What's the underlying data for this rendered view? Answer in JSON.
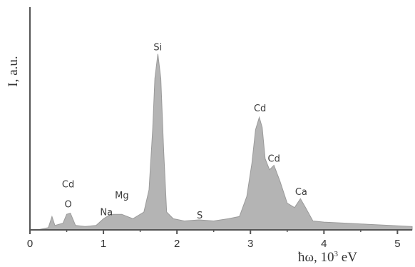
{
  "chart_data": {
    "type": "area",
    "ylabel": "I, a.u.",
    "xlabel_prefix": "ħω, 10",
    "xlabel_exponent": "3",
    "xlabel_suffix": " eV",
    "xlim": [
      0,
      5.2
    ],
    "ylim": [
      0,
      1
    ],
    "x_ticks": [
      {
        "value": 0,
        "label": "0"
      },
      {
        "value": 1,
        "label": "1"
      },
      {
        "value": 2,
        "label": "2"
      },
      {
        "value": 3,
        "label": "3"
      },
      {
        "value": 4,
        "label": "4"
      },
      {
        "value": 5,
        "label": "5"
      }
    ],
    "peaks": [
      {
        "label": "O",
        "x": 0.52,
        "height": 0.095
      },
      {
        "label": "Cd",
        "x": 0.52,
        "height": 0.185
      },
      {
        "label": "Na",
        "x": 1.04,
        "height": 0.06
      },
      {
        "label": "Mg",
        "x": 1.25,
        "height": 0.135
      },
      {
        "label": "Si",
        "x": 1.74,
        "height": 0.8
      },
      {
        "label": "S",
        "x": 2.31,
        "height": 0.045
      },
      {
        "label": "Cd",
        "x": 3.13,
        "height": 0.525
      },
      {
        "label": "Cd",
        "x": 3.32,
        "height": 0.3
      },
      {
        "label": "Ca",
        "x": 3.69,
        "height": 0.15
      }
    ],
    "spectrum": [
      [
        0.1,
        0.0
      ],
      [
        0.25,
        0.01
      ],
      [
        0.3,
        0.06
      ],
      [
        0.34,
        0.02
      ],
      [
        0.45,
        0.03
      ],
      [
        0.5,
        0.07
      ],
      [
        0.55,
        0.075
      ],
      [
        0.62,
        0.02
      ],
      [
        0.75,
        0.015
      ],
      [
        0.9,
        0.02
      ],
      [
        1.0,
        0.05
      ],
      [
        1.1,
        0.07
      ],
      [
        1.25,
        0.07
      ],
      [
        1.4,
        0.05
      ],
      [
        1.55,
        0.08
      ],
      [
        1.62,
        0.18
      ],
      [
        1.67,
        0.45
      ],
      [
        1.7,
        0.68
      ],
      [
        1.74,
        0.79
      ],
      [
        1.78,
        0.68
      ],
      [
        1.82,
        0.35
      ],
      [
        1.86,
        0.08
      ],
      [
        1.95,
        0.05
      ],
      [
        2.1,
        0.04
      ],
      [
        2.3,
        0.045
      ],
      [
        2.5,
        0.04
      ],
      [
        2.7,
        0.05
      ],
      [
        2.85,
        0.06
      ],
      [
        2.95,
        0.15
      ],
      [
        3.02,
        0.3
      ],
      [
        3.07,
        0.45
      ],
      [
        3.12,
        0.505
      ],
      [
        3.16,
        0.46
      ],
      [
        3.2,
        0.32
      ],
      [
        3.26,
        0.27
      ],
      [
        3.32,
        0.29
      ],
      [
        3.4,
        0.22
      ],
      [
        3.5,
        0.12
      ],
      [
        3.6,
        0.1
      ],
      [
        3.68,
        0.14
      ],
      [
        3.75,
        0.1
      ],
      [
        3.85,
        0.04
      ],
      [
        4.0,
        0.035
      ],
      [
        4.3,
        0.03
      ],
      [
        4.6,
        0.025
      ],
      [
        4.9,
        0.02
      ],
      [
        5.2,
        0.015
      ]
    ],
    "colors": {
      "fill": "#b4b4b4",
      "axis": "#555555",
      "text": "#333333"
    }
  }
}
